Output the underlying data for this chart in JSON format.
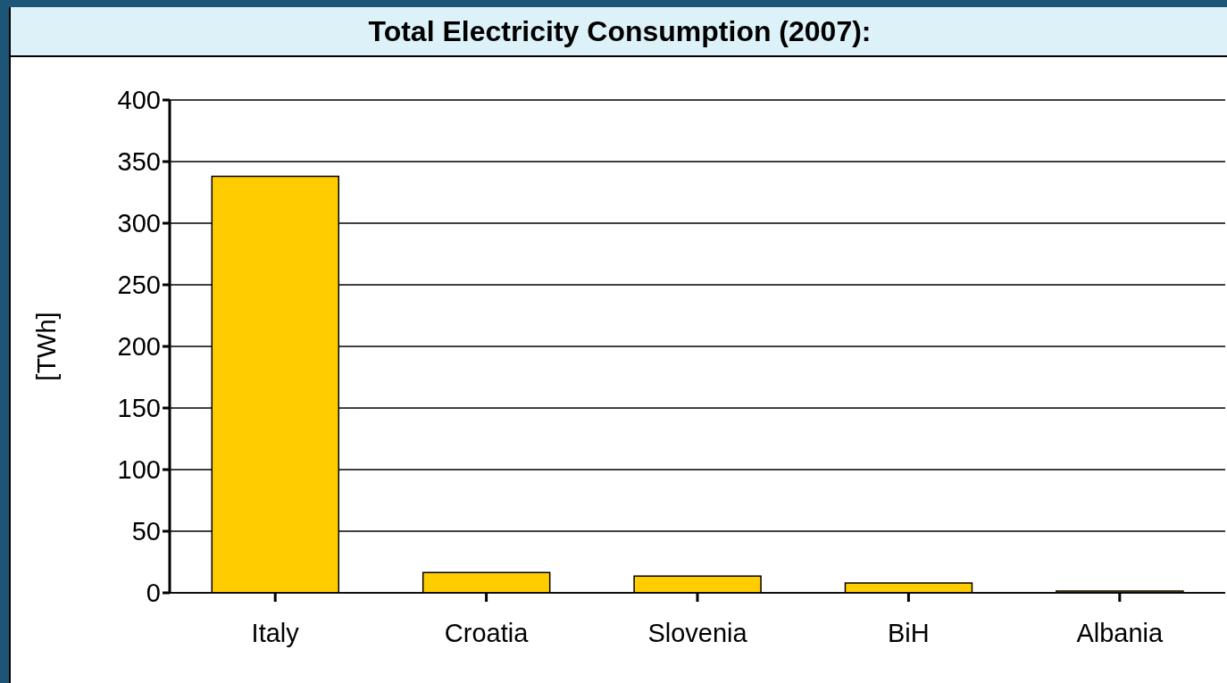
{
  "chart_data": {
    "type": "bar",
    "title": "Total Electricity Consumption (2007):",
    "ylabel": "[TWh]",
    "categories": [
      "Italy",
      "Croatia",
      "Slovenia",
      "BiH",
      "Albania"
    ],
    "values": [
      338,
      16.5,
      13.5,
      8,
      1.5
    ],
    "color": "#ffcc00",
    "ylim": [
      0,
      400
    ],
    "yticks": [
      0,
      50,
      100,
      150,
      200,
      250,
      300,
      350,
      400
    ],
    "grid": "y",
    "legend": false
  }
}
